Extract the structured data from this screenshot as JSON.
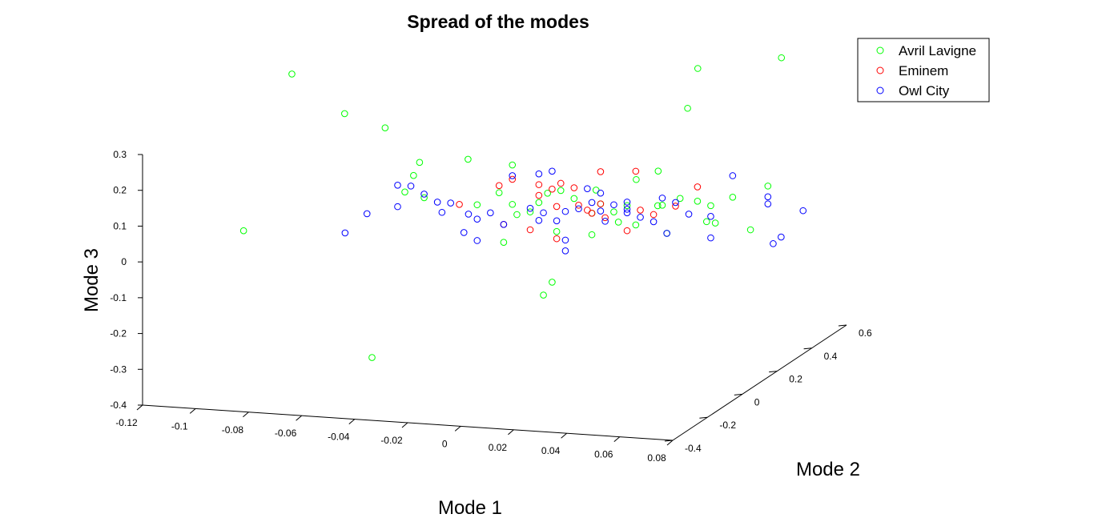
{
  "chart_data": {
    "type": "scatter",
    "projection": "3d",
    "title": "Spread of the modes",
    "xlabel": "Mode 1",
    "ylabel": "Mode 2",
    "zlabel": "Mode 3",
    "xlim": [
      -0.12,
      0.08
    ],
    "ylim": [
      -0.4,
      0.6
    ],
    "zlim": [
      -0.4,
      0.3
    ],
    "x_ticks": [
      "-0.12",
      "-0.1",
      "-0.08",
      "-0.06",
      "-0.04",
      "-0.02",
      "0",
      "0.02",
      "0.04",
      "0.06",
      "0.08"
    ],
    "y_ticks": [
      "-0.4",
      "-0.2",
      "0",
      "0.2",
      "0.4",
      "0.6"
    ],
    "z_ticks": [
      "0.3",
      "0.2",
      "0.1",
      "0",
      "-0.1",
      "-0.2",
      "-0.3",
      "-0.4"
    ],
    "legend": {
      "position": "top-right",
      "boxed": true
    },
    "marker": "open-circle",
    "series": [
      {
        "name": "Avril Lavigne",
        "color": "#00ff00",
        "points_screen_approx": true
      },
      {
        "name": "Eminem",
        "color": "#ff0000"
      },
      {
        "name": "Owl City",
        "color": "#0000ff"
      }
    ],
    "points": {
      "Avril Lavigne": [
        [
          -0.103,
          0.2,
          0.34
        ],
        [
          -0.07,
          0.0,
          0.31
        ],
        [
          -0.058,
          0.05,
          0.26
        ],
        [
          0.037,
          0.4,
          0.36
        ],
        [
          0.043,
          0.25,
          0.3
        ],
        [
          0.062,
          0.5,
          0.37
        ],
        [
          -0.095,
          -0.2,
          0.035
        ],
        [
          -0.04,
          -0.3,
          -0.26
        ],
        [
          0.005,
          0.0,
          -0.16
        ],
        [
          0.005,
          0.05,
          -0.14
        ],
        [
          -0.03,
          0.1,
          0.17
        ],
        [
          -0.01,
          0.05,
          0.18
        ],
        [
          0.04,
          0.0,
          0.18
        ],
        [
          0.045,
          0.05,
          0.19
        ],
        [
          -0.045,
          0.05,
          0.17
        ],
        [
          -0.044,
          0.0,
          0.15
        ],
        [
          -0.044,
          -0.05,
          0.12
        ],
        [
          -0.04,
          0.0,
          0.09
        ],
        [
          0.07,
          0.3,
          0.08
        ],
        [
          0.07,
          0.2,
          -0.01
        ],
        [
          0.06,
          0.1,
          0.04
        ],
        [
          0.06,
          0.15,
          0.02
        ],
        [
          0.05,
          0.2,
          0.06
        ],
        [
          0.05,
          0.1,
          0.1
        ],
        [
          0.0,
          0.1,
          0.09
        ],
        [
          0.0,
          0.05,
          0.08
        ],
        [
          0.01,
          0.1,
          0.08
        ],
        [
          0.02,
          0.1,
          0.07
        ],
        [
          0.03,
          0.1,
          0.07
        ],
        [
          0.02,
          0.05,
          0.06
        ],
        [
          0.025,
          0.1,
          0.05
        ],
        [
          0.03,
          0.05,
          0.04
        ],
        [
          -0.01,
          0.05,
          0.07
        ],
        [
          -0.005,
          0.0,
          0.06
        ],
        [
          0.015,
          0.15,
          0.09
        ],
        [
          0.04,
          0.15,
          0.06
        ],
        [
          0.01,
          0.0,
          0.02
        ],
        [
          0.02,
          0.05,
          0.0
        ],
        [
          0.03,
          0.15,
          0.0
        ],
        [
          0.045,
          0.1,
          0.0
        ],
        [
          -0.01,
          0.0,
          -0.02
        ],
        [
          0.035,
          0.2,
          0.04
        ],
        [
          0.055,
          0.2,
          0.05
        ],
        [
          0.06,
          0.25,
          0.06
        ],
        [
          0.005,
          0.1,
          0.1
        ],
        [
          -0.015,
          0.05,
          0.1
        ],
        [
          -0.02,
          0.0,
          0.08
        ],
        [
          0.0,
          0.0,
          0.07
        ]
      ],
      "Eminem": [
        [
          -0.03,
          0.05,
          0.06
        ],
        [
          -0.01,
          0.05,
          0.14
        ],
        [
          0.0,
          0.05,
          0.13
        ],
        [
          0.005,
          0.1,
          0.12
        ],
        [
          0.01,
          0.1,
          0.11
        ],
        [
          0.03,
          0.15,
          0.15
        ],
        [
          0.02,
          0.1,
          0.16
        ],
        [
          0.05,
          0.2,
          0.1
        ],
        [
          0.0,
          0.05,
          0.1
        ],
        [
          0.01,
          0.0,
          0.09
        ],
        [
          0.015,
          0.05,
          0.08
        ],
        [
          0.02,
          0.1,
          0.07
        ],
        [
          0.01,
          0.0,
          0.0
        ],
        [
          0.0,
          0.0,
          0.02
        ],
        [
          -0.01,
          0.0,
          0.03
        ],
        [
          0.03,
          0.1,
          0.0
        ],
        [
          0.04,
          0.1,
          0.05
        ],
        [
          0.045,
          0.15,
          0.06
        ],
        [
          0.025,
          0.05,
          0.05
        ],
        [
          0.035,
          0.1,
          0.06
        ],
        [
          0.02,
          0.05,
          0.06
        ],
        [
          0.005,
          0.05,
          0.12
        ],
        [
          -0.015,
          0.05,
          0.12
        ],
        [
          0.015,
          0.1,
          0.05
        ]
      ],
      "Owl City": [
        [
          -0.055,
          -0.1,
          0.07
        ],
        [
          -0.05,
          0.0,
          0.12
        ],
        [
          -0.045,
          0.0,
          0.12
        ],
        [
          -0.04,
          0.0,
          0.1
        ],
        [
          -0.03,
          -0.05,
          0.07
        ],
        [
          -0.03,
          0.0,
          0.08
        ],
        [
          -0.02,
          -0.05,
          0.07
        ],
        [
          -0.02,
          0.0,
          0.04
        ],
        [
          -0.01,
          0.0,
          0.03
        ],
        [
          -0.025,
          0.0,
          0.0
        ],
        [
          -0.02,
          0.0,
          -0.02
        ],
        [
          0.0,
          0.05,
          0.03
        ],
        [
          0.01,
          0.05,
          -0.02
        ],
        [
          0.01,
          0.05,
          -0.05
        ],
        [
          0.03,
          0.1,
          0.08
        ],
        [
          0.03,
          0.1,
          0.06
        ],
        [
          0.02,
          0.1,
          0.1
        ],
        [
          0.015,
          0.1,
          0.11
        ],
        [
          0.0,
          0.05,
          0.16
        ],
        [
          0.005,
          0.05,
          0.17
        ],
        [
          -0.01,
          0.05,
          0.15
        ],
        [
          0.02,
          0.1,
          0.05
        ],
        [
          0.01,
          0.05,
          0.06
        ],
        [
          0.015,
          0.05,
          0.07
        ],
        [
          0.025,
          0.1,
          0.07
        ],
        [
          0.03,
          0.1,
          0.05
        ],
        [
          0.035,
          0.1,
          0.04
        ],
        [
          0.04,
          0.15,
          0.08
        ],
        [
          0.045,
          0.15,
          0.07
        ],
        [
          0.05,
          0.15,
          0.04
        ],
        [
          0.055,
          0.2,
          0.02
        ],
        [
          0.055,
          0.2,
          -0.04
        ],
        [
          0.06,
          0.25,
          0.12
        ],
        [
          0.07,
          0.3,
          0.05
        ],
        [
          0.07,
          0.3,
          0.03
        ],
        [
          0.072,
          0.3,
          -0.08
        ],
        [
          0.075,
          0.3,
          -0.06
        ],
        [
          0.08,
          0.35,
          0.0
        ],
        [
          -0.05,
          0.0,
          0.06
        ],
        [
          -0.035,
          0.0,
          0.08
        ],
        [
          -0.015,
          0.0,
          0.06
        ],
        [
          0.0,
          0.0,
          0.08
        ],
        [
          0.005,
          0.0,
          0.07
        ],
        [
          0.01,
          0.0,
          0.05
        ],
        [
          0.02,
          0.05,
          0.09
        ],
        [
          0.025,
          0.05,
          0.04
        ],
        [
          0.04,
          0.1,
          0.03
        ],
        [
          0.045,
          0.1,
          0.0
        ],
        [
          -0.06,
          -0.15,
          0.03
        ]
      ]
    }
  }
}
